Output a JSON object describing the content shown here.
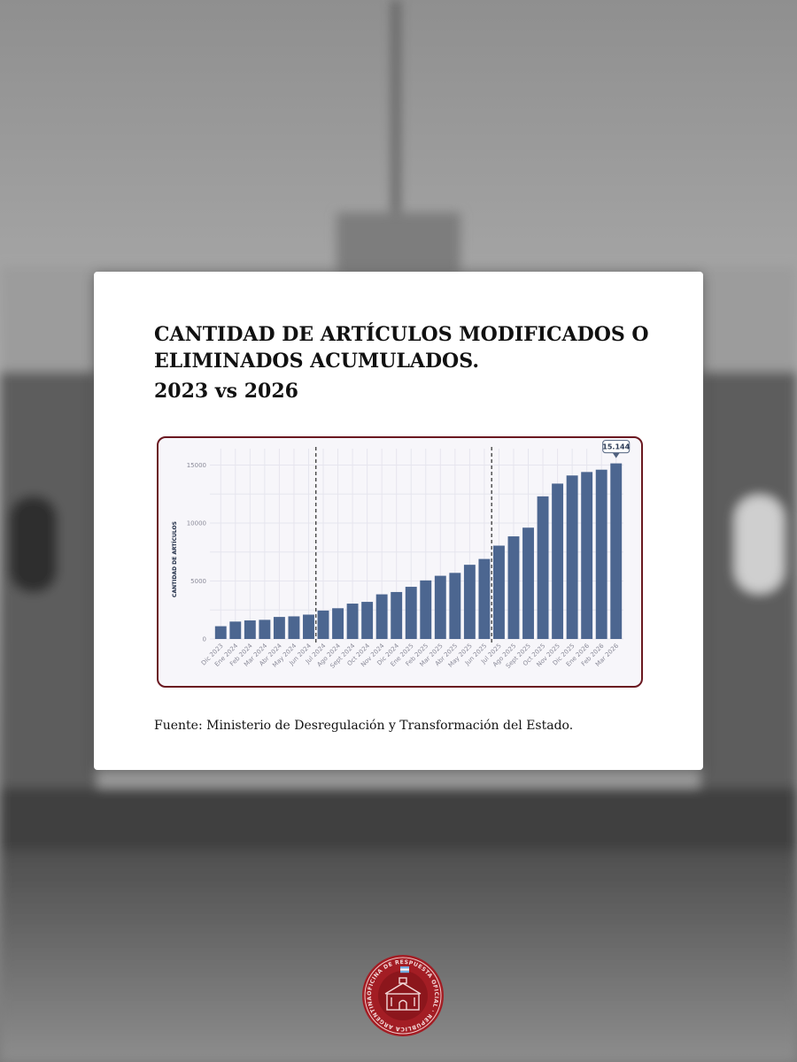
{
  "card": {
    "title": "CANTIDAD DE ARTÍCULOS MODIFICADOS O ELIMINADOS ACUMULADOS.",
    "subtitle": "2023 vs 2026",
    "source": "Fuente: Ministerio de Desregulación y Transformación del Estado."
  },
  "chart_data": {
    "type": "bar",
    "title": "CANTIDAD DE ARTÍCULOS MODIFICADOS O ELIMINADOS ACUMULADOS.",
    "subtitle": "2023 vs 2026",
    "xlabel": "",
    "ylabel": "CANTIDAD DE ARTÍCULOS",
    "ylim": [
      0,
      15800
    ],
    "yticks": [
      0,
      5000,
      10000,
      15000
    ],
    "grid": true,
    "categories": [
      "Dic 2023",
      "Ene 2024",
      "Feb 2024",
      "Mar 2024",
      "Abr 2024",
      "May 2024",
      "Jun 2024",
      "Jul 2024",
      "Ago 2024",
      "Sept 2024",
      "Oct 2024",
      "Nov 2024",
      "Dic 2024",
      "Ene 2025",
      "Feb 2025",
      "Mar 2025",
      "Abr 2025",
      "May 2025",
      "Jun 2025",
      "Jul 2025",
      "Ago 2025",
      "Sept 2025",
      "Oct 2025",
      "Nov 2025",
      "Dic 2025",
      "Ene 2026",
      "Feb 2026",
      "Mar 2026"
    ],
    "values": [
      1100,
      1500,
      1600,
      1650,
      1900,
      1950,
      2100,
      2450,
      2650,
      3050,
      3200,
      3850,
      4050,
      4500,
      5050,
      5450,
      5700,
      6400,
      6900,
      8050,
      8850,
      9600,
      12300,
      13400,
      14100,
      14400,
      14600,
      15144
    ],
    "reference_lines": [
      "Jul 2024",
      "Jul 2025"
    ],
    "callout": {
      "category": "Mar 2026",
      "label": "15.144"
    },
    "colors": {
      "bar": "#4c6690",
      "frame": "#6a1820",
      "plot_bg": "#f7f6fa"
    }
  },
  "seal": {
    "text": "OFICINA DE RESPUESTA OFICIAL · REPÚBLICA ARGENTINA",
    "colors": {
      "outer": "#a31d24",
      "inner": "#8c161c",
      "ink": "#f3d9d9"
    }
  }
}
